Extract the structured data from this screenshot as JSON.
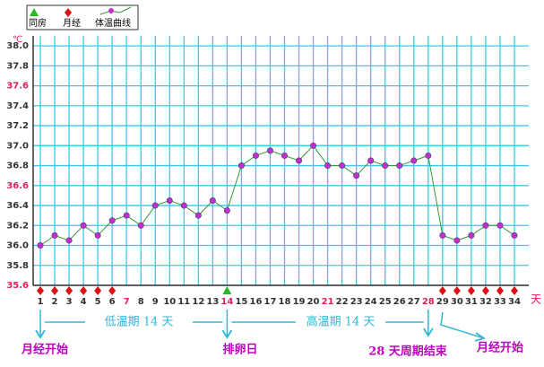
{
  "chart_data": {
    "type": "line",
    "unit": "℃",
    "x_suffix": "天",
    "x": [
      1,
      2,
      3,
      4,
      5,
      6,
      7,
      8,
      9,
      10,
      11,
      12,
      13,
      14,
      15,
      16,
      17,
      18,
      19,
      20,
      21,
      22,
      23,
      24,
      25,
      26,
      27,
      28,
      29,
      30,
      31,
      32,
      33,
      34
    ],
    "xlim": [
      0.5,
      35
    ],
    "xticks": [
      1,
      2,
      3,
      4,
      5,
      6,
      7,
      8,
      9,
      10,
      11,
      12,
      13,
      14,
      15,
      16,
      17,
      18,
      19,
      20,
      21,
      22,
      23,
      24,
      25,
      26,
      27,
      28,
      29,
      30,
      31,
      32,
      33,
      34
    ],
    "ylim": [
      35.6,
      38.1
    ],
    "yticks": [
      {
        "value": 35.6,
        "label": "35.6"
      },
      {
        "value": 35.8,
        "label": "35.8"
      },
      {
        "value": 36,
        "label": "36.0"
      },
      {
        "value": 36.2,
        "label": "36.2"
      },
      {
        "value": 36.4,
        "label": "36.4"
      },
      {
        "value": 36.6,
        "label": "36.6"
      },
      {
        "value": 36.8,
        "label": "36.8"
      },
      {
        "value": 37,
        "label": "37.0"
      },
      {
        "value": 37.2,
        "label": "37.2"
      },
      {
        "value": 37.4,
        "label": "37.4"
      },
      {
        "value": 37.6,
        "label": "37.6"
      },
      {
        "value": 37.8,
        "label": "37.8"
      },
      {
        "value": 38,
        "label": "38.0"
      }
    ],
    "grid": true,
    "grid_color": "#3cc8e8",
    "highlight_color": "#e0205a",
    "highlight_xticks": [
      7,
      14,
      21,
      28
    ],
    "highlight_yticks": [
      35.6,
      36.6,
      37.6
    ],
    "series": [
      {
        "name": "体温曲线",
        "color": "#339933",
        "marker_color": "#c030d0",
        "values": [
          36.0,
          36.1,
          36.05,
          36.2,
          36.1,
          36.25,
          36.3,
          36.2,
          36.4,
          36.45,
          36.4,
          36.3,
          36.45,
          36.35,
          36.8,
          36.9,
          36.95,
          36.9,
          36.85,
          37.0,
          36.8,
          36.8,
          36.7,
          36.85,
          36.8,
          36.8,
          36.85,
          36.9,
          36.1,
          36.05,
          36.1,
          36.2,
          36.2,
          36.1
        ]
      }
    ],
    "events": [
      {
        "name": "同房",
        "color": "#22bb22",
        "shape": "triangle",
        "x": [
          14
        ]
      },
      {
        "name": "月经",
        "color": "#dd1111",
        "shape": "diamond",
        "x": [
          1,
          2,
          3,
          4,
          5,
          6,
          29,
          30,
          31,
          32,
          33,
          34
        ]
      }
    ],
    "annotations": [
      "低温期 14 天",
      "高温期 14 天",
      "月经开始",
      "排卵日",
      "28 天周期结束",
      "月经开始"
    ]
  }
}
